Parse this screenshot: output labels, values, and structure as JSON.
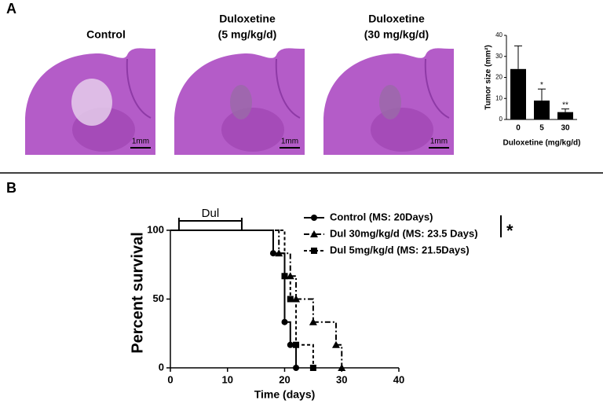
{
  "figure": {
    "panel_a": "A",
    "panel_b": "B",
    "images": [
      {
        "title": [
          "Control"
        ],
        "scale": "1mm"
      },
      {
        "title": [
          "Duloxetine",
          "(5 mg/kg/d)"
        ],
        "scale": "1mm"
      },
      {
        "title": [
          "Duloxetine",
          "(30 mg/kg/d)"
        ],
        "scale": "1mm"
      }
    ]
  },
  "chart_data": [
    {
      "type": "bar",
      "categories": [
        "0",
        "5",
        "30"
      ],
      "values": [
        24,
        9,
        3.5
      ],
      "errors": [
        11,
        5.5,
        1.5
      ],
      "color": "#000000",
      "ylabel": "Tumor size (mm²)",
      "xlabel": "Duloxetine (mg/kg/d)",
      "ylim": [
        0,
        40
      ],
      "yticks": [
        0,
        10,
        20,
        30,
        40
      ],
      "annotations": [
        {
          "x": "5",
          "text": "*"
        },
        {
          "x": "30",
          "text": "**"
        }
      ]
    },
    {
      "type": "survival",
      "xlabel": "Time (days)",
      "ylabel": "Percent survival",
      "xlim": [
        0,
        40
      ],
      "xticks": [
        0,
        10,
        20,
        30,
        40
      ],
      "ylim": [
        0,
        100
      ],
      "yticks": [
        0,
        50,
        100
      ],
      "treatment": {
        "label": "Dul",
        "range": [
          1.5,
          12.5
        ]
      },
      "significance": "*",
      "series": [
        {
          "name": "Control (MS: 20Days)",
          "color": "#000000",
          "marker": "circle",
          "dash": "solid",
          "x": [
            0,
            18,
            20,
            21,
            22
          ],
          "values": [
            100,
            83.3,
            33.3,
            16.7,
            0
          ]
        },
        {
          "name": "Dul 30mg/kg/d (MS: 23.5 Days)",
          "color": "#000000",
          "marker": "triangle",
          "dash": "dashdot",
          "x": [
            0,
            19,
            21,
            22,
            25,
            29,
            30
          ],
          "values": [
            100,
            83.3,
            66.7,
            50,
            33.3,
            16.7,
            0
          ]
        },
        {
          "name": "Dul 5mg/kg/d (MS: 21.5Days)",
          "color": "#000000",
          "marker": "square",
          "dash": "dashed",
          "x": [
            0,
            20,
            21,
            22,
            25
          ],
          "values": [
            100,
            66.7,
            50,
            16.7,
            0
          ]
        }
      ]
    }
  ]
}
